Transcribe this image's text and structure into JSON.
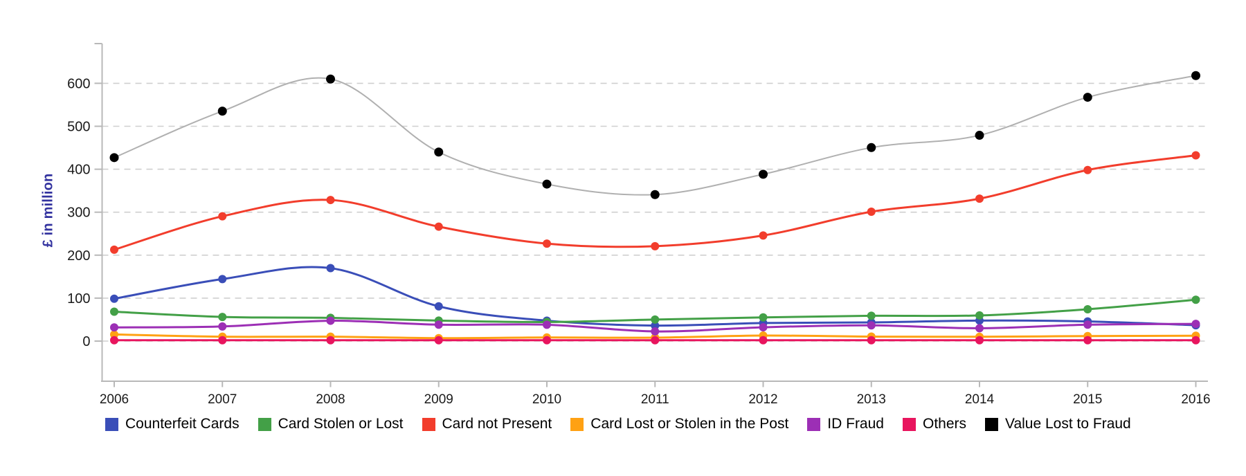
{
  "colors": {
    "axis_line": "#b8b8b8",
    "gridline": "#cfcfcf",
    "tick_label_text": "#1a1a1a",
    "y_axis_title_text": "#32329f",
    "background": "#ffffff"
  },
  "y_axis": {
    "title": "£ in million",
    "tick_labels": [
      "0",
      "100",
      "200",
      "300",
      "400",
      "500",
      "600"
    ]
  },
  "x_axis": {
    "tick_labels": [
      "2006",
      "2007",
      "2008",
      "2009",
      "2010",
      "2011",
      "2012",
      "2013",
      "2014",
      "2015",
      "2016"
    ]
  },
  "chart_data": {
    "type": "line",
    "title": "",
    "xlabel": "",
    "ylabel": "£ in million",
    "categories": [
      2006,
      2007,
      2008,
      2009,
      2010,
      2011,
      2012,
      2013,
      2014,
      2015,
      2016
    ],
    "y_ticks": [
      0,
      100,
      200,
      300,
      400,
      500,
      600
    ],
    "ylim": [
      0,
      650
    ],
    "grid": "horizontal-dashed",
    "line_style": "smooth",
    "legend_position": "bottom",
    "series": [
      {
        "name": "Counterfeit Cards",
        "color": "#3a4eb8",
        "values": [
          98.6,
          144.3,
          169.8,
          80.9,
          47.6,
          36.1,
          42.1,
          43.4,
          47.8,
          45.7,
          36.9
        ]
      },
      {
        "name": "Card Stolen or Lost",
        "color": "#43a047",
        "values": [
          68.5,
          56.2,
          54.1,
          47.7,
          44.4,
          50.1,
          55.2,
          58.9,
          59.7,
          74.1,
          96.3
        ]
      },
      {
        "name": "Card not Present",
        "color": "#f23d2c",
        "values": [
          212.7,
          290.5,
          328.4,
          266.4,
          226.9,
          220.9,
          245.8,
          301.1,
          331.5,
          398.2,
          432.3
        ]
      },
      {
        "name": "Card Lost or Stolen in the Post",
        "color": "#ffa113",
        "values": [
          15.4,
          10.2,
          10.2,
          6.9,
          8.4,
          8.0,
          12.8,
          10.4,
          10.1,
          11.7,
          12.5
        ]
      },
      {
        "name": "ID Fraud",
        "color": "#9c2fb5",
        "values": [
          31.9,
          34.1,
          47.4,
          38.2,
          38.1,
          22.5,
          32.1,
          36.7,
          29.9,
          38.2,
          40.0
        ]
      },
      {
        "name": "Others",
        "color": "#e8155e",
        "values": [
          2,
          2,
          2,
          2,
          2,
          2,
          2,
          2,
          2,
          2,
          2
        ]
      },
      {
        "name": "Value Lost to Fraud",
        "color": "#b0b0b0",
        "marker_color": "#000000",
        "values": [
          427.0,
          535.2,
          609.9,
          440.0,
          365.4,
          341.0,
          388.3,
          450.4,
          479.0,
          567.5,
          618.0
        ]
      }
    ]
  }
}
